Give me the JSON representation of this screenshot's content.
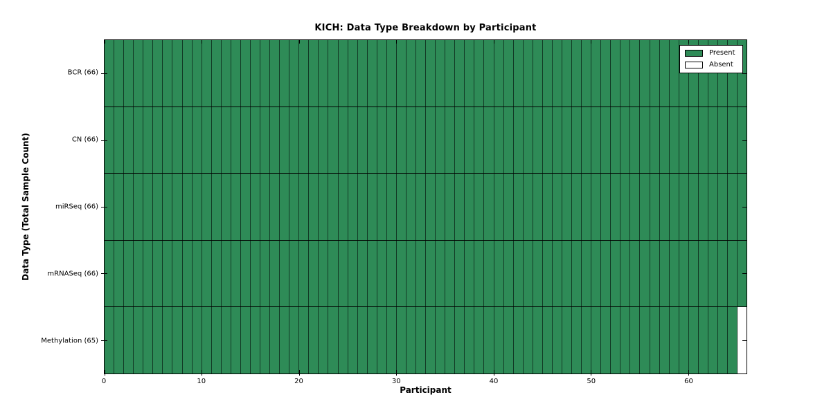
{
  "chart_data": {
    "type": "heatmap",
    "title": "KICH: Data Type Breakdown by Participant",
    "xlabel": "Participant",
    "ylabel": "Data Type (Total Sample Count)",
    "n_participants": 66,
    "x_ticks": [
      0,
      10,
      20,
      30,
      40,
      50,
      60
    ],
    "xlim": [
      0,
      66
    ],
    "grid": false,
    "legend_position": "upper right",
    "rows": [
      {
        "label": "BCR (66)",
        "data_type": "BCR",
        "present_count": 66,
        "absent_participants": []
      },
      {
        "label": "CN (66)",
        "data_type": "CN",
        "present_count": 66,
        "absent_participants": []
      },
      {
        "label": "miRSeq (66)",
        "data_type": "miRSeq",
        "present_count": 66,
        "absent_participants": []
      },
      {
        "label": "mRNASeq (66)",
        "data_type": "mRNASeq",
        "present_count": 66,
        "absent_participants": []
      },
      {
        "label": "Methylation (65)",
        "data_type": "Methylation",
        "present_count": 65,
        "absent_participants": [
          65
        ]
      }
    ],
    "legend": [
      {
        "label": "Present",
        "color": "#2E8B57"
      },
      {
        "label": "Absent",
        "color": "#FFFFFF"
      }
    ],
    "colors": {
      "present": "#2E8B57",
      "absent": "#FFFFFF",
      "edge": "#000000"
    }
  }
}
